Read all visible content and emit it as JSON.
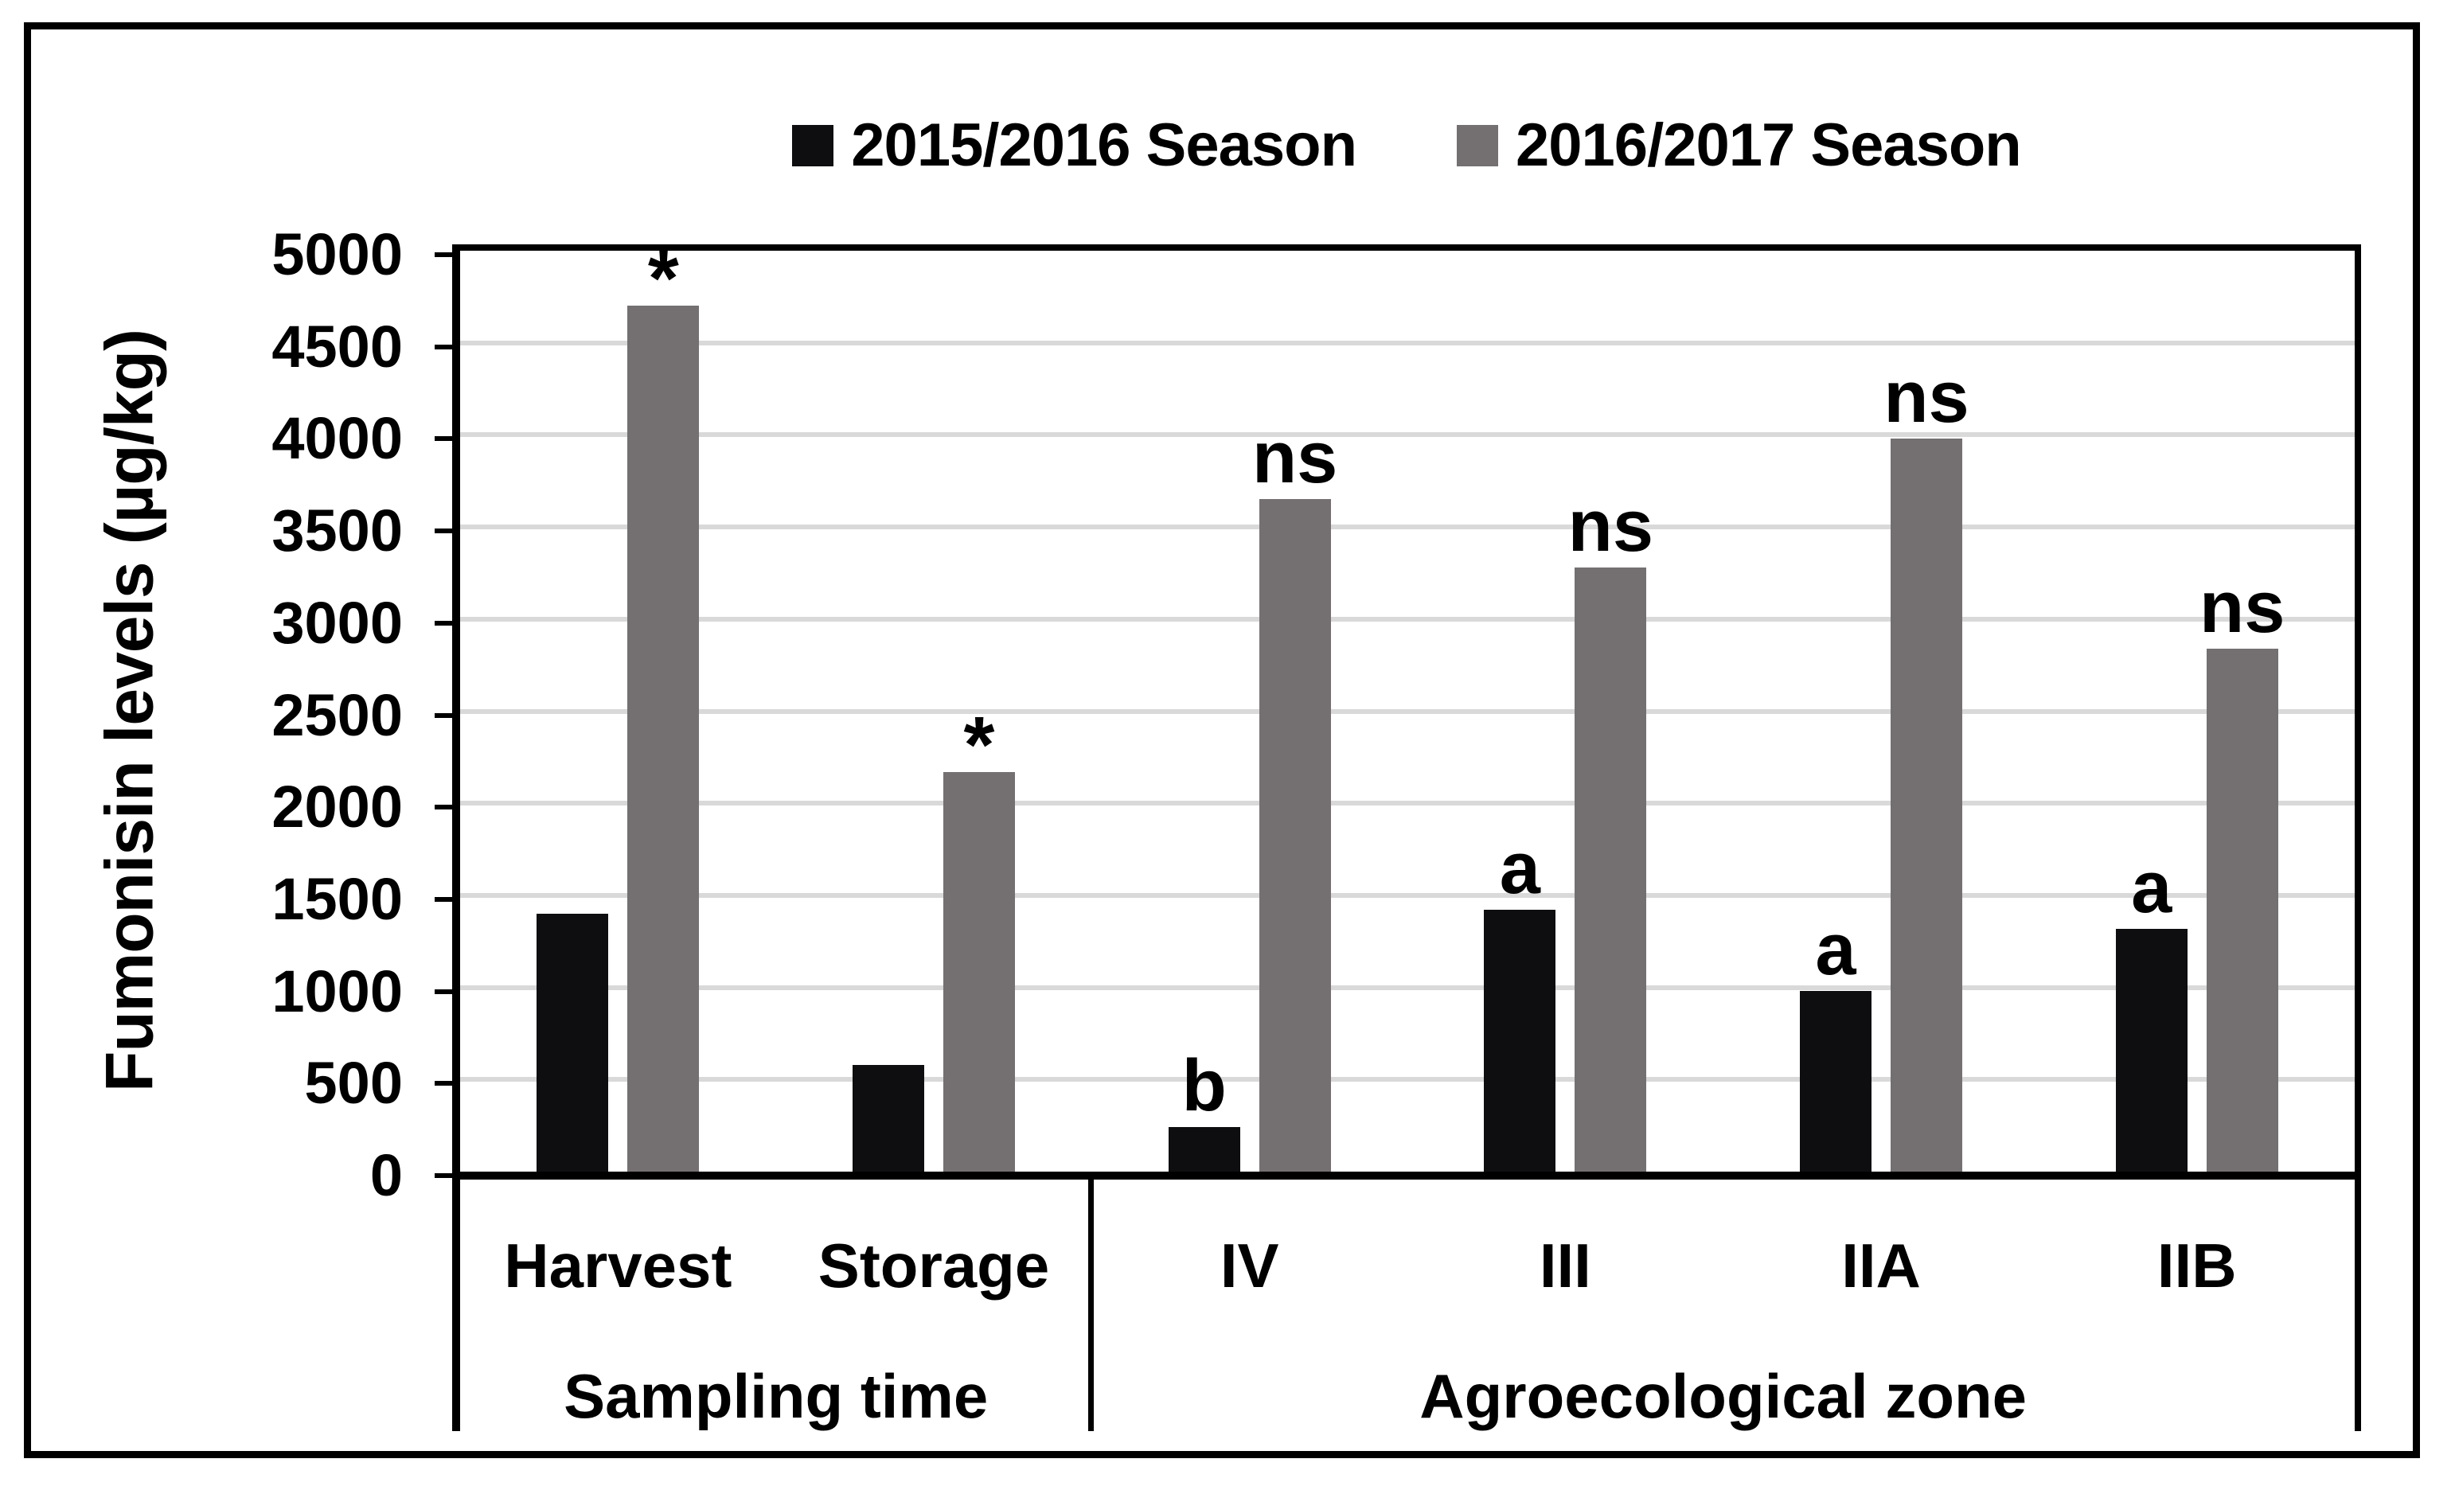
{
  "figure": {
    "background": "#ffffff",
    "border_color": "#000000"
  },
  "legend": {
    "items": [
      {
        "label": "2015/2016 Season",
        "color": "#0e0e10"
      },
      {
        "label": "2016/2017 Season",
        "color": "#747071"
      }
    ]
  },
  "y_axis": {
    "title": "Fumonisin levels (µg/kg)",
    "min": 0,
    "max": 5000,
    "step": 500,
    "tick_labels": [
      "0",
      "500",
      "1000",
      "1500",
      "2000",
      "2500",
      "3000",
      "3500",
      "4000",
      "4500",
      "5000"
    ]
  },
  "x_axis": {
    "categories": [
      "Harvest",
      "Storage",
      "IV",
      "III",
      "IIA",
      "IIB"
    ],
    "groups": [
      {
        "label": "Sampling time",
        "categories": [
          "Harvest",
          "Storage"
        ]
      },
      {
        "label": "Agroecological zone",
        "categories": [
          "IV",
          "III",
          "IIA",
          "IIB"
        ]
      }
    ]
  },
  "chart_data": {
    "type": "bar",
    "title": "",
    "xlabel": "",
    "ylabel": "Fumonisin levels (µg/kg)",
    "ylim": [
      0,
      5000
    ],
    "ytick_step": 500,
    "grid": true,
    "grid_color": "#d9d9d9",
    "legend_position": "top-center",
    "categories": [
      "Harvest",
      "Storage",
      "IV",
      "III",
      "IIA",
      "IIB"
    ],
    "category_group_labels": [
      "Sampling time",
      "Agroecological zone"
    ],
    "series": [
      {
        "name": "2015/2016 Season",
        "color": "#0e0e10",
        "values": [
          1400,
          580,
          240,
          1420,
          980,
          1320
        ],
        "annotations": [
          "",
          "",
          "b",
          "a",
          "a",
          "a"
        ]
      },
      {
        "name": "2016/2017 Season",
        "color": "#747071",
        "values": [
          4700,
          2170,
          3650,
          3280,
          3980,
          2840
        ],
        "annotations": [
          "*",
          "*",
          "ns",
          "ns",
          "ns",
          "ns"
        ]
      }
    ]
  }
}
